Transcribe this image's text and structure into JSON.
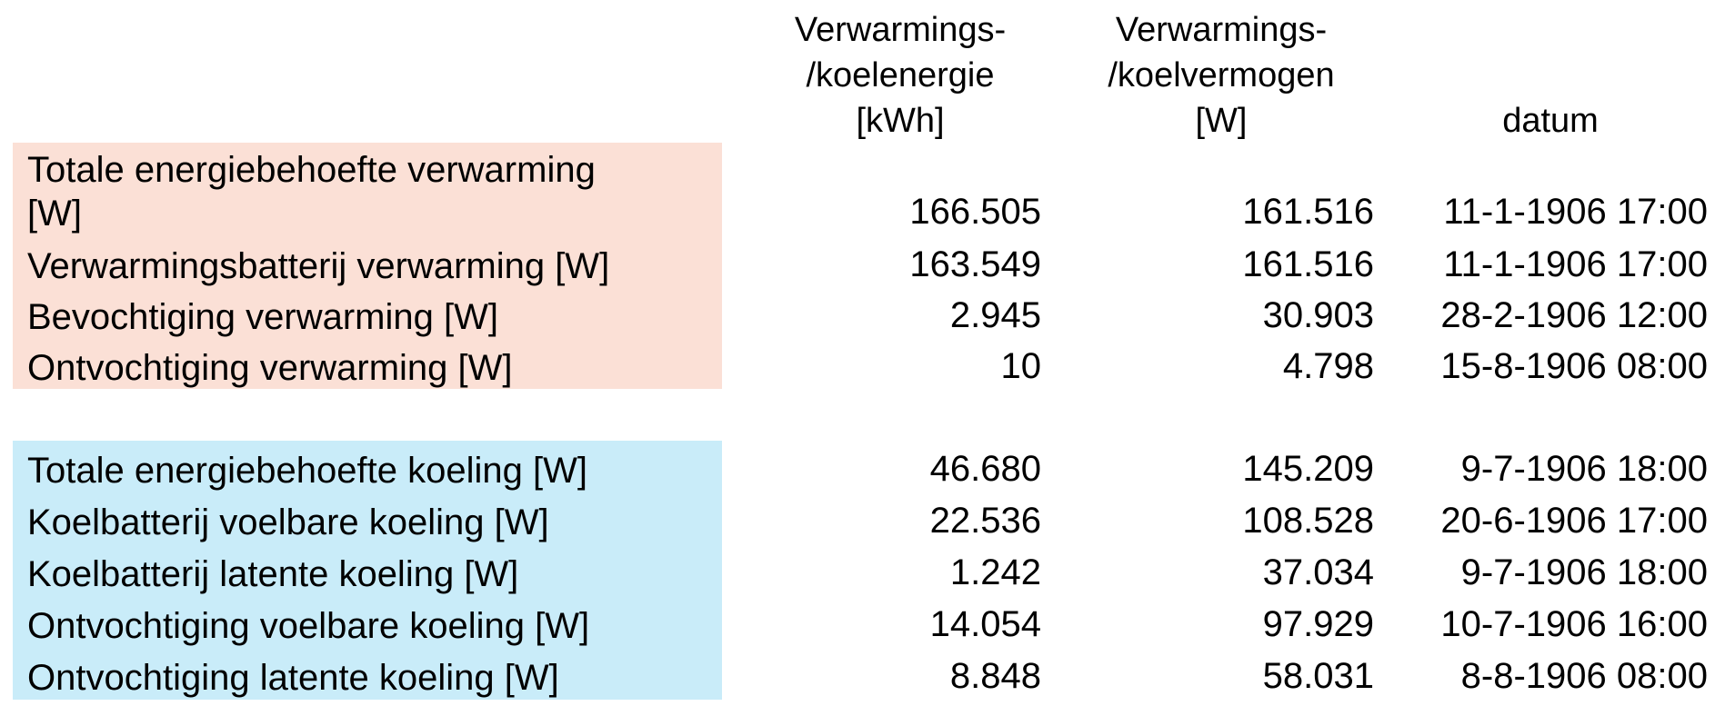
{
  "headers": {
    "energy": [
      "Verwarmings-",
      "/koelenergie",
      "[kWh]"
    ],
    "power": [
      "Verwarmings-",
      "/koelvermogen",
      "[W]"
    ],
    "date": "datum"
  },
  "heating": [
    {
      "label_lines": [
        "Totale energiebehoefte verwarming",
        "[W]"
      ],
      "energy": "166.505",
      "power": "161.516",
      "date": "11-1-1906 17:00"
    },
    {
      "label_lines": [
        "Verwarmingsbatterij verwarming [W]"
      ],
      "energy": "163.549",
      "power": "161.516",
      "date": "11-1-1906 17:00"
    },
    {
      "label_lines": [
        "Bevochtiging verwarming [W]"
      ],
      "energy": "2.945",
      "power": "30.903",
      "date": "28-2-1906 12:00"
    },
    {
      "label_lines": [
        "Ontvochtiging verwarming [W]"
      ],
      "energy": "10",
      "power": "4.798",
      "date": "15-8-1906 08:00"
    }
  ],
  "cooling": [
    {
      "label_lines": [
        "Totale energiebehoefte koeling [W]"
      ],
      "energy": "46.680",
      "power": "145.209",
      "date": "9-7-1906 18:00"
    },
    {
      "label_lines": [
        "Koelbatterij voelbare koeling [W]"
      ],
      "energy": "22.536",
      "power": "108.528",
      "date": "20-6-1906 17:00"
    },
    {
      "label_lines": [
        "Koelbatterij latente koeling [W]"
      ],
      "energy": "1.242",
      "power": "37.034",
      "date": "9-7-1906 18:00"
    },
    {
      "label_lines": [
        "Ontvochtiging voelbare koeling [W]"
      ],
      "energy": "14.054",
      "power": "97.929",
      "date": "10-7-1906 16:00"
    },
    {
      "label_lines": [
        "Ontvochtiging latente koeling [W]"
      ],
      "energy": "8.848",
      "power": "58.031",
      "date": "8-8-1906 08:00"
    }
  ],
  "colors": {
    "heating_band": "#fbe0d6",
    "cooling_band": "#c9ecf9"
  }
}
